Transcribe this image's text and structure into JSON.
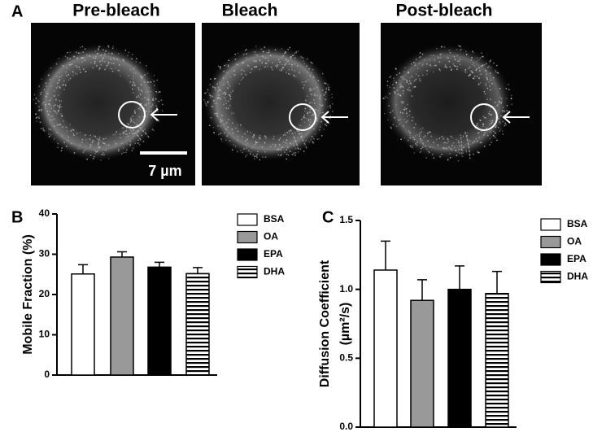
{
  "panel_a": {
    "label": "A",
    "images": [
      "Pre-bleach",
      "Bleach",
      "Post-bleach"
    ],
    "scale_bar": "7 µm"
  },
  "chart_data": [
    {
      "type": "bar",
      "panel": "B",
      "ylabel": "Mobile Fraction (%)",
      "categories": [
        "BSA",
        "OA",
        "EPA",
        "DHA"
      ],
      "values": [
        25.1,
        29.3,
        26.8,
        25.2
      ],
      "errors": [
        2.3,
        1.3,
        1.2,
        1.5
      ],
      "colors": [
        "#ffffff",
        "#999999",
        "#000000",
        "#ffffff"
      ],
      "hatch": [
        false,
        false,
        false,
        true
      ],
      "ylim": [
        0,
        40
      ],
      "yticks": [
        0,
        10,
        20,
        30,
        40
      ],
      "legend": "right"
    },
    {
      "type": "bar",
      "panel": "C",
      "ylabel": [
        "Diffusion Coefficient",
        "(µm²/s)"
      ],
      "categories": [
        "BSA",
        "OA",
        "EPA",
        "DHA"
      ],
      "values": [
        1.14,
        0.92,
        1.0,
        0.97
      ],
      "errors": [
        0.21,
        0.15,
        0.17,
        0.16
      ],
      "colors": [
        "#ffffff",
        "#999999",
        "#000000",
        "#ffffff"
      ],
      "hatch": [
        false,
        false,
        false,
        true
      ],
      "ylim": [
        0,
        1.5
      ],
      "yticks": [
        {
          "value": 0,
          "label": "0.0"
        },
        {
          "value": 0.5,
          "label": "0.5"
        },
        {
          "value": 1,
          "label": "1.0"
        },
        {
          "value": 1.5,
          "label": "1.5"
        }
      ],
      "legend": "right"
    }
  ]
}
